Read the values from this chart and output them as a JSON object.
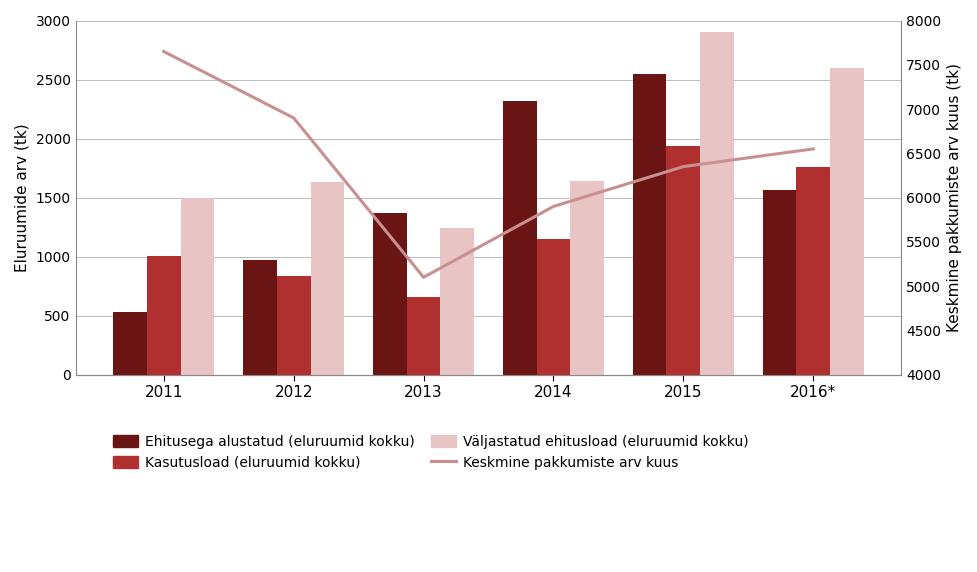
{
  "years": [
    "2011",
    "2012",
    "2013",
    "2014",
    "2015",
    "2016*"
  ],
  "ehitusega_alustatud": [
    530,
    975,
    1370,
    2320,
    2550,
    1565
  ],
  "kasutusload": [
    1005,
    835,
    655,
    1150,
    1940,
    1755
  ],
  "valjastatud_ehitusload": [
    1500,
    1630,
    1245,
    1640,
    2900,
    2600
  ],
  "keskmine_pakkumiste": [
    7650,
    6900,
    5100,
    5900,
    6350,
    6550
  ],
  "color_ehitusega": "#6B1414",
  "color_kasutusload": "#B03030",
  "color_valjastatud": "#E8C4C4",
  "color_line": "#C89090",
  "ylabel_left": "Eluruumide arv (tk)",
  "ylabel_right": "Keskmine pakkumiste arv kuus (tk)",
  "ylim_left": [
    0,
    3000
  ],
  "ylim_right": [
    4000,
    8000
  ],
  "yticks_left": [
    0,
    500,
    1000,
    1500,
    2000,
    2500,
    3000
  ],
  "yticks_right": [
    4000,
    4500,
    5000,
    5500,
    6000,
    6500,
    7000,
    7500,
    8000
  ],
  "legend_labels": [
    "Ehitusega alustatud (eluruumid kokku)",
    "Kasutusload (eluruumid kokku)",
    "Väljastatud ehitusload (eluruumid kokku)",
    "Keskmine pakkumiste arv kuus"
  ],
  "background_color": "#FFFFFF",
  "grid_color": "#BBBBBB",
  "bar_width": 0.26
}
